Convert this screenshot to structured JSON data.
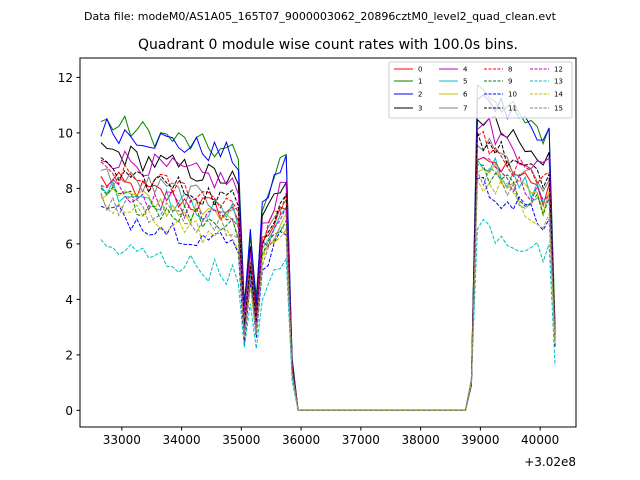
{
  "header": {
    "data_file": "Data file: modeM0/AS1A05_165T07_9000003062_20896cztM0_level2_quad_clean.evt"
  },
  "chart_data": {
    "type": "line",
    "title": "Quadrant 0 module wise count rates with 100.0s bins.",
    "xlabel": "",
    "ylabel": "",
    "x_offset_label": "+3.02e8",
    "xlim": [
      32300,
      40600
    ],
    "ylim": [
      -0.6,
      12.7
    ],
    "xticks": [
      33000,
      34000,
      35000,
      36000,
      37000,
      38000,
      39000,
      40000
    ],
    "yticks": [
      0,
      2,
      4,
      6,
      8,
      10,
      12
    ],
    "legend_position": "top-right",
    "x_start": 32650,
    "bin": 100,
    "n_points": 77,
    "series": [
      {
        "name": "0",
        "color": "#ff0000",
        "style": "solid",
        "base": 8.3,
        "shift": 0.7,
        "end": 3.0
      },
      {
        "name": "1",
        "color": "#008000",
        "style": "solid",
        "base": 10.4,
        "shift": 0.6,
        "end": 3.1
      },
      {
        "name": "2",
        "color": "#0000ff",
        "style": "solid",
        "base": 10.2,
        "shift": 0.3,
        "end": 2.3
      },
      {
        "name": "3",
        "color": "#000000",
        "style": "solid",
        "base": 9.4,
        "shift": 0.5,
        "end": 2.6
      },
      {
        "name": "4",
        "color": "#bf00bf",
        "style": "solid",
        "base": 9.2,
        "shift": 0.2,
        "end": 2.7
      },
      {
        "name": "5",
        "color": "#00bfbf",
        "style": "solid",
        "base": 8.1,
        "shift": 0.4,
        "end": 2.5
      },
      {
        "name": "6",
        "color": "#bfbf00",
        "style": "solid",
        "base": 7.9,
        "shift": 0.5,
        "end": 2.5
      },
      {
        "name": "7",
        "color": "#808080",
        "style": "solid",
        "base": 8.5,
        "shift": 0.6,
        "end": 2.6
      },
      {
        "name": "8",
        "color": "#ff0000",
        "style": "dashed",
        "base": 8.6,
        "shift": 0.3,
        "end": 2.8
      },
      {
        "name": "9",
        "color": "#008000",
        "style": "dashed",
        "base": 7.8,
        "shift": 0.5,
        "end": 2.6
      },
      {
        "name": "10",
        "color": "#0000ff",
        "style": "dashed",
        "base": 7.2,
        "shift": 0.8,
        "end": 2.5
      },
      {
        "name": "11",
        "color": "#000000",
        "style": "dashed",
        "base": 8.7,
        "shift": 0.6,
        "end": 2.7
      },
      {
        "name": "12",
        "color": "#bf00bf",
        "style": "dashed",
        "base": 8.0,
        "shift": 0.4,
        "end": 2.6
      },
      {
        "name": "13",
        "color": "#00bfbf",
        "style": "dashed",
        "base": 5.9,
        "shift": 0.2,
        "end": 1.6
      },
      {
        "name": "14",
        "color": "#bfbf00",
        "style": "dashed",
        "base": 7.4,
        "shift": 0.9,
        "end": 2.4
      },
      {
        "name": "15",
        "color": "#808080",
        "style": "dashed",
        "base": 7.6,
        "shift": 0.4,
        "end": 2.5
      }
    ]
  }
}
